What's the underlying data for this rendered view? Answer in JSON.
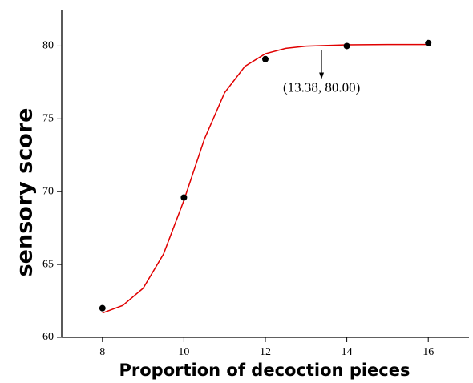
{
  "chart_data": {
    "type": "scatter-fit",
    "xlabel": "Proportion of decoction pieces",
    "ylabel": "sensory score",
    "xlim": [
      7,
      17
    ],
    "xticks": [
      8,
      10,
      12,
      14,
      16
    ],
    "ylim": [
      60,
      82.5
    ],
    "yticks": [
      60,
      65,
      70,
      75,
      80
    ],
    "series": [
      {
        "kind": "points",
        "color": "#000000",
        "x": [
          8,
          10,
          12,
          14,
          16
        ],
        "values": [
          62.0,
          69.6,
          79.1,
          80.0,
          80.2
        ]
      },
      {
        "kind": "fit",
        "color": "#e00000",
        "x": [
          8,
          8.5,
          9,
          9.5,
          10,
          10.5,
          11,
          11.5,
          12,
          12.5,
          13,
          14,
          15,
          16
        ],
        "values": [
          61.67,
          62.19,
          63.37,
          65.72,
          69.4,
          73.59,
          76.8,
          78.61,
          79.47,
          79.84,
          79.99,
          80.08,
          80.1,
          80.1
        ]
      }
    ],
    "annotation": {
      "text": "(13.38, 80.00)",
      "x": 13.38,
      "y": 80.0
    }
  }
}
